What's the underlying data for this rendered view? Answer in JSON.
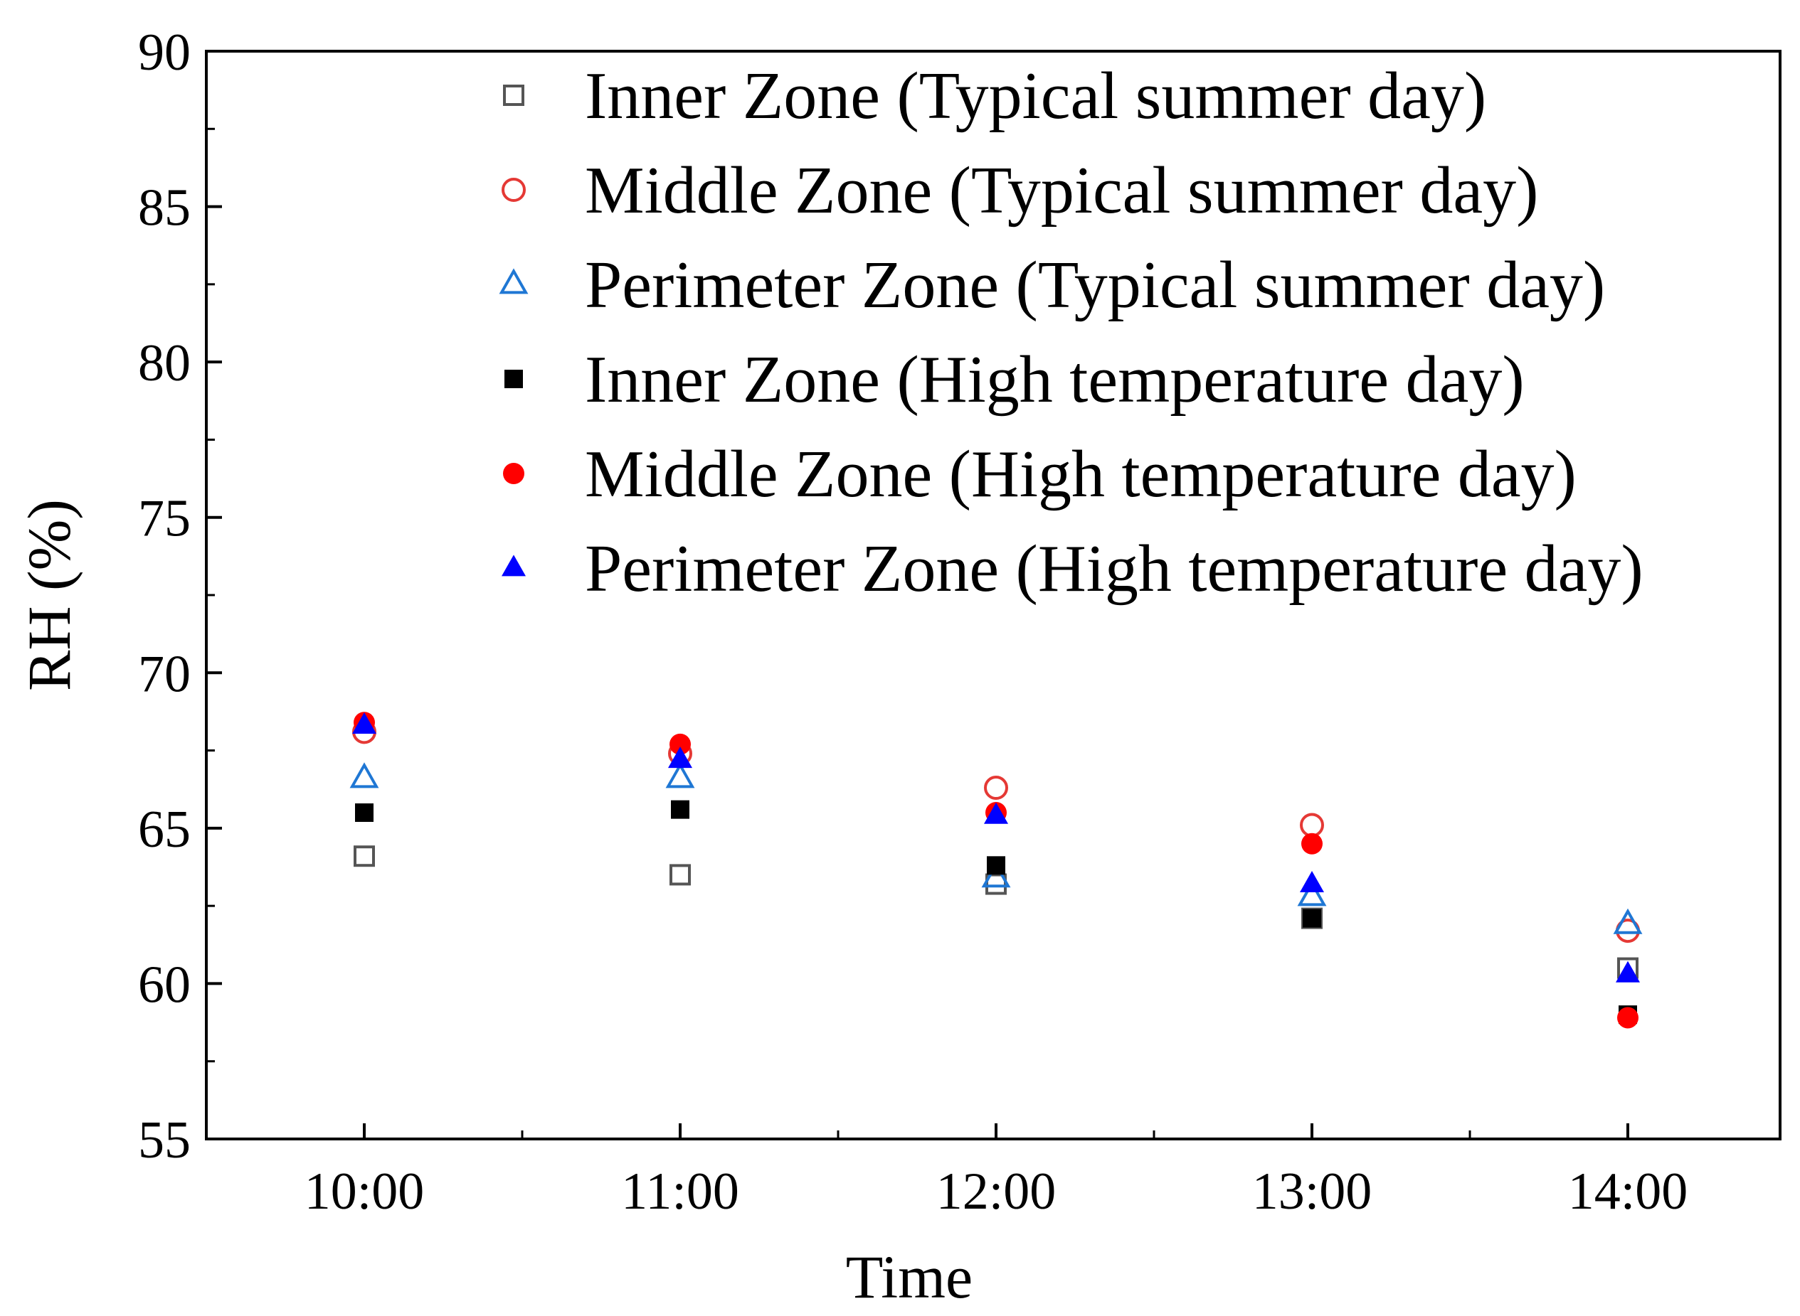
{
  "chart_data": {
    "type": "scatter",
    "title": "",
    "xlabel": "Time",
    "ylabel": "RH (%)",
    "categories": [
      "10:00",
      "11:00",
      "12:00",
      "13:00",
      "14:00"
    ],
    "ylim": [
      55,
      90
    ],
    "yticks": [
      55,
      60,
      65,
      70,
      75,
      80,
      85,
      90
    ],
    "grid": false,
    "legend_position": "top-right",
    "series": [
      {
        "name": "Inner Zone (Typical summer day)",
        "marker": "square",
        "filled": false,
        "color": "#555555",
        "values": [
          64.1,
          63.5,
          63.2,
          62.1,
          60.5
        ]
      },
      {
        "name": "Middle Zone (Typical summer day)",
        "marker": "circle",
        "filled": false,
        "color": "#e53935",
        "values": [
          68.1,
          67.4,
          66.3,
          65.1,
          61.7
        ]
      },
      {
        "name": "Perimeter Zone (Typical summer day)",
        "marker": "triangle",
        "filled": false,
        "color": "#1f77d4",
        "values": [
          66.6,
          66.6,
          63.4,
          62.8,
          61.9
        ]
      },
      {
        "name": "Inner Zone (High temperature day)",
        "marker": "square",
        "filled": true,
        "color": "#000000",
        "values": [
          65.5,
          65.6,
          63.8,
          62.1,
          59.0
        ]
      },
      {
        "name": "Middle Zone (High temperature day)",
        "marker": "circle",
        "filled": true,
        "color": "#ff0000",
        "values": [
          68.4,
          67.7,
          65.5,
          64.5,
          58.9
        ]
      },
      {
        "name": "Perimeter Zone (High temperature day)",
        "marker": "triangle",
        "filled": true,
        "color": "#0000ff",
        "values": [
          68.3,
          67.2,
          65.4,
          63.2,
          60.3
        ]
      }
    ]
  }
}
